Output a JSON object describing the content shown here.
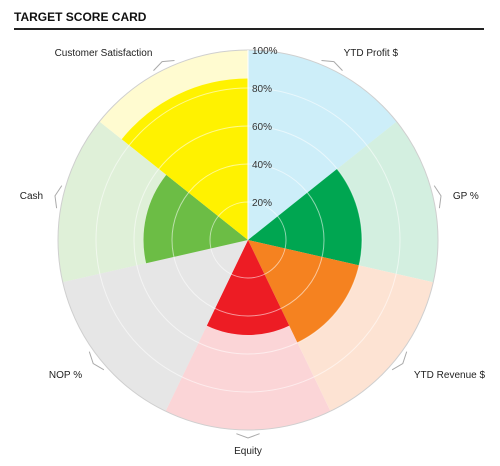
{
  "header": {
    "title": "TARGET SCORE CARD"
  },
  "chart_data": {
    "type": "polar-area",
    "title": "TARGET SCORE CARD",
    "r_ticks": [
      "20%",
      "40%",
      "60%",
      "80%",
      "100%"
    ],
    "rlim": [
      0,
      100
    ],
    "categories": [
      "YTD Profit $",
      "GP %",
      "YTD Revenue $",
      "Equity",
      "NOP %",
      "Cash",
      "Customer Satisfaction"
    ],
    "values": [
      100,
      60,
      60,
      50,
      100,
      55,
      85
    ],
    "target": [
      100,
      100,
      100,
      100,
      100,
      100,
      100
    ],
    "colors": [
      "#cdeef9",
      "#00a651",
      "#f58220",
      "#ed1c24",
      "#e6e6e6",
      "#6cbd45",
      "#fff200"
    ],
    "light_colors": [
      "#cdeef9",
      "#d3efe0",
      "#fde3d3",
      "#fbd5d7",
      "#e6e6e6",
      "#dff0d8",
      "#fffbd0"
    ],
    "grid": true
  }
}
